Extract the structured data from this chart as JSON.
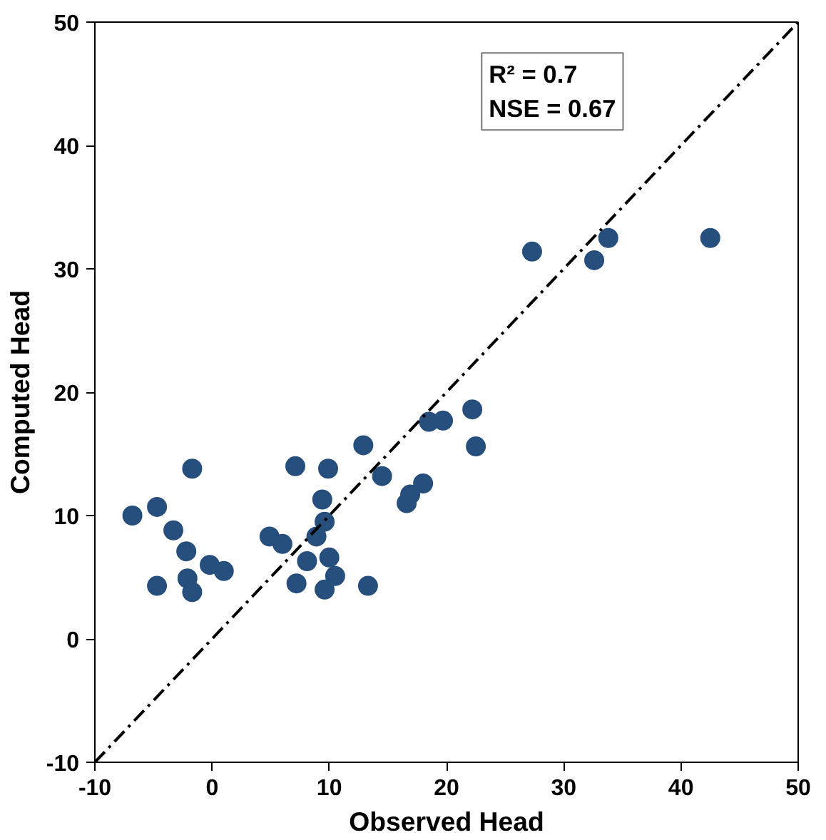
{
  "chart_data": {
    "type": "scatter",
    "xlabel": "Observed Head",
    "ylabel": "Computed Head",
    "xlim": [
      -10,
      50
    ],
    "ylim": [
      -10,
      50
    ],
    "xticks": [
      -10,
      0,
      10,
      20,
      30,
      40,
      50
    ],
    "yticks": [
      -10,
      0,
      10,
      20,
      30,
      40,
      50
    ],
    "grid": false,
    "annotations": [
      "R² = 0.7\nNSE = 0.67"
    ],
    "series": [
      {
        "marker": "circle",
        "color": "#264f7d",
        "x": [
          -6.8,
          -4.7,
          -4.7,
          -3.3,
          -2.2,
          -2.1,
          -1.7,
          -1.7,
          -0.2,
          1.0,
          4.9,
          6.0,
          7.1,
          7.2,
          8.1,
          8.9,
          9.4,
          9.6,
          9.6,
          9.9,
          10.0,
          10.5,
          12.9,
          13.3,
          14.5,
          16.6,
          16.9,
          18.0,
          18.5,
          19.7,
          22.2,
          22.5,
          27.3,
          32.6,
          33.8,
          42.5
        ],
        "values": [
          10.0,
          10.7,
          4.3,
          8.8,
          7.1,
          4.9,
          3.8,
          13.8,
          6.0,
          5.5,
          8.3,
          7.7,
          14.0,
          4.5,
          6.3,
          8.3,
          11.3,
          9.5,
          4.0,
          13.8,
          6.6,
          5.1,
          15.7,
          4.3,
          13.2,
          11.0,
          11.7,
          12.6,
          17.6,
          17.7,
          18.6,
          15.6,
          31.4,
          30.7,
          32.5,
          32.5
        ]
      },
      {
        "type": "line",
        "color": "#000000",
        "line_style": "dashdot",
        "x": [
          -10,
          50
        ],
        "values": [
          -10,
          50
        ]
      }
    ]
  }
}
